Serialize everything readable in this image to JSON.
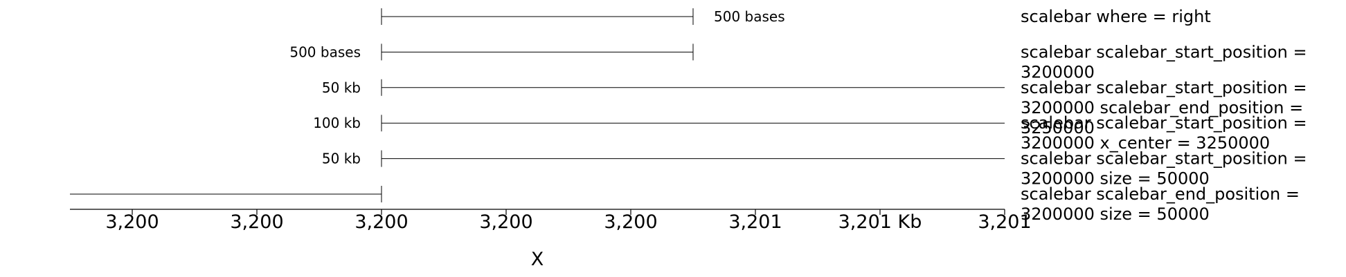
{
  "chart_data": {
    "type": "scalebar-tracks",
    "colors": {
      "line": "#000000",
      "text": "#000000",
      "background": "#ffffff"
    },
    "tracks": [
      {
        "title_lines": [
          "scalebar where = right"
        ],
        "bar": {
          "start_bp": 3200000,
          "end_bp": 3200500
        },
        "label": "500 bases",
        "label_side": "right"
      },
      {
        "title_lines": [
          "scalebar scalebar_start_position =",
          "3200000"
        ],
        "bar": {
          "start_bp": 3200000,
          "end_bp": 3200500
        },
        "label": "500 bases",
        "label_side": "left"
      },
      {
        "title_lines": [
          "scalebar scalebar_start_position =",
          "3200000 scalebar_end_position =",
          "3250000"
        ],
        "bar": {
          "start_bp": 3200000,
          "end_bp": 3250000
        },
        "label": "50 kb",
        "label_side": "left"
      },
      {
        "title_lines": [
          "scalebar scalebar_start_position =",
          "3200000 x_center = 3250000"
        ],
        "bar": {
          "start_bp": 3200000,
          "end_bp": 3300000
        },
        "label": "100 kb",
        "label_side": "left"
      },
      {
        "title_lines": [
          "scalebar scalebar_start_position =",
          "3200000 size = 50000"
        ],
        "bar": {
          "start_bp": 3200000,
          "end_bp": 3250000
        },
        "label": "50 kb",
        "label_side": "left"
      },
      {
        "title_lines": [
          "scalebar scalebar_end_position =",
          "3200000 size = 50000"
        ],
        "bar": {
          "start_bp": 3150000,
          "end_bp": 3200000
        },
        "label": "",
        "label_side": "none"
      }
    ],
    "x_axis": {
      "title": "X",
      "range_bp": [
        3199500,
        3201000
      ],
      "ticks": [
        {
          "value": 3199600,
          "label": "3,200"
        },
        {
          "value": 3199800,
          "label": "3,200"
        },
        {
          "value": 3200000,
          "label": "3,200"
        },
        {
          "value": 3200200,
          "label": "3,200"
        },
        {
          "value": 3200400,
          "label": "3,200"
        },
        {
          "value": 3200600,
          "label": "3,201"
        },
        {
          "value": 3200800,
          "label": "3,201 Kb"
        },
        {
          "value": 3201000,
          "label": "3,201"
        }
      ]
    }
  }
}
